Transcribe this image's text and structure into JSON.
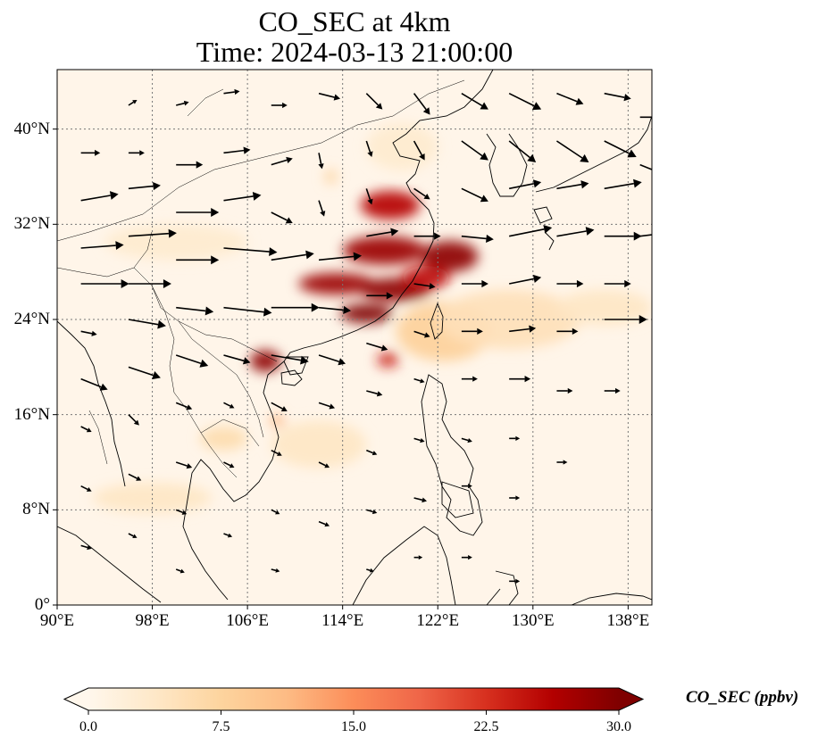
{
  "title": {
    "line1": "CO_SEC at 4km",
    "line2": "Time: 2024-03-13 21:00:00"
  },
  "map": {
    "lon_range": [
      90,
      140
    ],
    "lat_range": [
      0,
      45
    ],
    "lat_ticks": [
      {
        "value": 40,
        "label": "40°N"
      },
      {
        "value": 32,
        "label": "32°N"
      },
      {
        "value": 24,
        "label": "24°N"
      },
      {
        "value": 16,
        "label": "16°N"
      },
      {
        "value": 8,
        "label": "8°N"
      },
      {
        "value": 0,
        "label": "0°"
      }
    ],
    "lon_ticks": [
      {
        "value": 90,
        "label": "90°E"
      },
      {
        "value": 98,
        "label": "98°E"
      },
      {
        "value": 106,
        "label": "106°E"
      },
      {
        "value": 114,
        "label": "114°E"
      },
      {
        "value": 122,
        "label": "122°E"
      },
      {
        "value": 130,
        "label": "130°E"
      },
      {
        "value": 138,
        "label": "138°E"
      }
    ],
    "gridlines": true
  },
  "colorbar": {
    "title": "CO_SEC (ppbv)",
    "ticks": [
      "0.0",
      "7.5",
      "15.0",
      "22.5",
      "30.0"
    ],
    "tick_values": [
      0,
      7.5,
      15,
      22.5,
      30
    ],
    "range": [
      0,
      30
    ],
    "extend": "both",
    "colors": [
      "#fff7ec",
      "#fee8c8",
      "#fdd49e",
      "#fdbb84",
      "#fc8d59",
      "#ef6548",
      "#d7301f",
      "#b30000",
      "#7f0000"
    ]
  },
  "plumes": [
    {
      "lon": 118.0,
      "lat": 33.6,
      "rlon": 2.5,
      "rlat": 1.2,
      "value": 26
    },
    {
      "lon": 123.0,
      "lat": 29.3,
      "rlon": 2.4,
      "rlat": 1.3,
      "value": 29
    },
    {
      "lon": 117.5,
      "lat": 29.8,
      "rlon": 3.5,
      "rlat": 1.2,
      "value": 28
    },
    {
      "lon": 113.5,
      "lat": 27.0,
      "rlon": 3.2,
      "rlat": 0.9,
      "value": 28
    },
    {
      "lon": 118.5,
      "lat": 26.5,
      "rlon": 3.0,
      "rlat": 1.0,
      "value": 29
    },
    {
      "lon": 116.0,
      "lat": 24.5,
      "rlon": 2.2,
      "rlat": 0.8,
      "value": 30
    },
    {
      "lon": 121.0,
      "lat": 27.5,
      "rlon": 2.0,
      "rlat": 1.0,
      "value": 25
    },
    {
      "lon": 107.5,
      "lat": 20.5,
      "rlon": 1.3,
      "rlat": 0.9,
      "value": 29
    },
    {
      "lon": 117.8,
      "lat": 20.6,
      "rlon": 0.9,
      "rlat": 0.6,
      "value": 24
    },
    {
      "lon": 113.0,
      "lat": 36.0,
      "rlon": 0.5,
      "rlat": 0.6,
      "value": 8
    },
    {
      "lon": 122.5,
      "lat": 23.0,
      "rlon": 4.0,
      "rlat": 2.5,
      "value": 8
    },
    {
      "lon": 128.0,
      "lat": 24.0,
      "rlon": 6.0,
      "rlat": 2.5,
      "value": 5
    },
    {
      "lon": 108.5,
      "lat": 15.5,
      "rlon": 0.6,
      "rlat": 0.5,
      "value": 12
    },
    {
      "lon": 104.0,
      "lat": 14.0,
      "rlon": 2.0,
      "rlat": 1.0,
      "value": 6
    },
    {
      "lon": 98.0,
      "lat": 9.0,
      "rlon": 5.0,
      "rlat": 1.3,
      "value": 4
    },
    {
      "lon": 112.0,
      "lat": 13.5,
      "rlon": 4.0,
      "rlat": 2.0,
      "value": 4
    },
    {
      "lon": 100.0,
      "lat": 30.5,
      "rlon": 6.0,
      "rlat": 1.5,
      "value": 3
    },
    {
      "lon": 136.0,
      "lat": 25.0,
      "rlon": 4.0,
      "rlat": 1.5,
      "value": 4
    },
    {
      "lon": 119.0,
      "lat": 38.5,
      "rlon": 3.0,
      "rlat": 2.0,
      "value": 3
    }
  ],
  "winds": [
    {
      "lon": 92,
      "lat": 38,
      "u": 1.8,
      "v": 0
    },
    {
      "lon": 92,
      "lat": 34,
      "u": 3.5,
      "v": 0.6
    },
    {
      "lon": 92,
      "lat": 30,
      "u": 4.0,
      "v": 0.3
    },
    {
      "lon": 92,
      "lat": 27,
      "u": 4.5,
      "v": 0
    },
    {
      "lon": 92,
      "lat": 23,
      "u": 1.5,
      "v": -0.3
    },
    {
      "lon": 92,
      "lat": 19,
      "u": 2.5,
      "v": -1.0
    },
    {
      "lon": 92,
      "lat": 15,
      "u": 1.0,
      "v": -0.5
    },
    {
      "lon": 92,
      "lat": 10,
      "u": 1.0,
      "v": -0.5
    },
    {
      "lon": 92,
      "lat": 5,
      "u": 1.0,
      "v": -0.3
    },
    {
      "lon": 96,
      "lat": 42,
      "u": 0.8,
      "v": 0.5
    },
    {
      "lon": 96,
      "lat": 38,
      "u": 1.5,
      "v": 0
    },
    {
      "lon": 96,
      "lat": 35,
      "u": 3.0,
      "v": 0.3
    },
    {
      "lon": 96,
      "lat": 31,
      "u": 4.5,
      "v": 0.3
    },
    {
      "lon": 96,
      "lat": 27,
      "u": 4.0,
      "v": 0
    },
    {
      "lon": 96,
      "lat": 24,
      "u": 3.5,
      "v": -0.6
    },
    {
      "lon": 96,
      "lat": 20,
      "u": 3.0,
      "v": -1.0
    },
    {
      "lon": 96,
      "lat": 16,
      "u": 1.0,
      "v": -1.0
    },
    {
      "lon": 96,
      "lat": 11,
      "u": 1.2,
      "v": -0.6
    },
    {
      "lon": 96,
      "lat": 6,
      "u": 0.8,
      "v": -0.4
    },
    {
      "lon": 100,
      "lat": 42,
      "u": 1.2,
      "v": 0.3
    },
    {
      "lon": 100,
      "lat": 37,
      "u": 2.5,
      "v": 0
    },
    {
      "lon": 100,
      "lat": 33,
      "u": 4.0,
      "v": 0
    },
    {
      "lon": 100,
      "lat": 29,
      "u": 4.0,
      "v": 0
    },
    {
      "lon": 100,
      "lat": 25,
      "u": 3.5,
      "v": -0.4
    },
    {
      "lon": 100,
      "lat": 21,
      "u": 3.0,
      "v": -1.0
    },
    {
      "lon": 100,
      "lat": 17,
      "u": 1.5,
      "v": -0.6
    },
    {
      "lon": 100,
      "lat": 12,
      "u": 1.5,
      "v": -0.5
    },
    {
      "lon": 100,
      "lat": 8,
      "u": 1.0,
      "v": -0.4
    },
    {
      "lon": 100,
      "lat": 3,
      "u": 0.8,
      "v": -0.3
    },
    {
      "lon": 104,
      "lat": 43,
      "u": 1.5,
      "v": 0.2
    },
    {
      "lon": 104,
      "lat": 38,
      "u": 2.5,
      "v": 0.3
    },
    {
      "lon": 104,
      "lat": 34,
      "u": 3.5,
      "v": 0.5
    },
    {
      "lon": 104,
      "lat": 30,
      "u": 5.0,
      "v": -0.4
    },
    {
      "lon": 104,
      "lat": 25,
      "u": 4.5,
      "v": -0.5
    },
    {
      "lon": 104,
      "lat": 21,
      "u": 2.5,
      "v": -0.7
    },
    {
      "lon": 104,
      "lat": 17,
      "u": 1.0,
      "v": -0.5
    },
    {
      "lon": 104,
      "lat": 12,
      "u": 1.0,
      "v": -0.5
    },
    {
      "lon": 104,
      "lat": 6,
      "u": 0.8,
      "v": -0.3
    },
    {
      "lon": 108,
      "lat": 42,
      "u": 1.5,
      "v": 0
    },
    {
      "lon": 108,
      "lat": 37,
      "u": 2.0,
      "v": 0.6
    },
    {
      "lon": 108,
      "lat": 33,
      "u": 2.0,
      "v": -1.0
    },
    {
      "lon": 108,
      "lat": 29,
      "u": 4.0,
      "v": 0.6
    },
    {
      "lon": 108,
      "lat": 25,
      "u": 4.5,
      "v": 0
    },
    {
      "lon": 108,
      "lat": 21,
      "u": 3.5,
      "v": -0.6
    },
    {
      "lon": 108,
      "lat": 17,
      "u": 1.5,
      "v": -0.8
    },
    {
      "lon": 108,
      "lat": 13,
      "u": 1.0,
      "v": -0.5
    },
    {
      "lon": 108,
      "lat": 8,
      "u": 0.8,
      "v": -0.4
    },
    {
      "lon": 108,
      "lat": 3,
      "u": 0.8,
      "v": -0.2
    },
    {
      "lon": 112,
      "lat": 43,
      "u": 2.0,
      "v": -0.5
    },
    {
      "lon": 112,
      "lat": 38,
      "u": 0.3,
      "v": -1.5
    },
    {
      "lon": 112,
      "lat": 34,
      "u": 0.5,
      "v": -1.5
    },
    {
      "lon": 112,
      "lat": 29,
      "u": 4.0,
      "v": 0.4
    },
    {
      "lon": 112,
      "lat": 25,
      "u": 3.0,
      "v": -0.3
    },
    {
      "lon": 112,
      "lat": 21,
      "u": 2.5,
      "v": -0.8
    },
    {
      "lon": 112,
      "lat": 17,
      "u": 1.5,
      "v": -0.5
    },
    {
      "lon": 112,
      "lat": 12,
      "u": 1.0,
      "v": -0.5
    },
    {
      "lon": 112,
      "lat": 7,
      "u": 1.0,
      "v": -0.4
    },
    {
      "lon": 116,
      "lat": 43,
      "u": 1.5,
      "v": -1.5
    },
    {
      "lon": 116,
      "lat": 39,
      "u": 0.5,
      "v": -1.5
    },
    {
      "lon": 116,
      "lat": 35,
      "u": 0.5,
      "v": -1.5
    },
    {
      "lon": 116,
      "lat": 31,
      "u": 3.0,
      "v": 0.5
    },
    {
      "lon": 116,
      "lat": 26,
      "u": 2.5,
      "v": 0
    },
    {
      "lon": 116,
      "lat": 22,
      "u": 2.0,
      "v": -0.6
    },
    {
      "lon": 116,
      "lat": 18,
      "u": 1.5,
      "v": -0.4
    },
    {
      "lon": 116,
      "lat": 13,
      "u": 1.0,
      "v": -0.4
    },
    {
      "lon": 116,
      "lat": 8,
      "u": 1.0,
      "v": -0.3
    },
    {
      "lon": 116,
      "lat": 3,
      "u": 0.7,
      "v": -0.2
    },
    {
      "lon": 120,
      "lat": 43,
      "u": 1.5,
      "v": -2.0
    },
    {
      "lon": 120,
      "lat": 39,
      "u": 1.0,
      "v": -1.8
    },
    {
      "lon": 120,
      "lat": 35,
      "u": 1.5,
      "v": -1.0
    },
    {
      "lon": 120,
      "lat": 31,
      "u": 2.5,
      "v": 0
    },
    {
      "lon": 120,
      "lat": 27,
      "u": 2.0,
      "v": -0.3
    },
    {
      "lon": 120,
      "lat": 23,
      "u": 1.5,
      "v": -0.5
    },
    {
      "lon": 120,
      "lat": 19,
      "u": 1.0,
      "v": -0.3
    },
    {
      "lon": 120,
      "lat": 14,
      "u": 1.0,
      "v": -0.3
    },
    {
      "lon": 120,
      "lat": 9,
      "u": 1.2,
      "v": -0.3
    },
    {
      "lon": 120,
      "lat": 4,
      "u": 0.8,
      "v": 0
    },
    {
      "lon": 124,
      "lat": 43,
      "u": 2.5,
      "v": -1.5
    },
    {
      "lon": 124,
      "lat": 39,
      "u": 2.5,
      "v": -1.8
    },
    {
      "lon": 124,
      "lat": 35,
      "u": 2.5,
      "v": -1.2
    },
    {
      "lon": 124,
      "lat": 31,
      "u": 3.0,
      "v": -0.3
    },
    {
      "lon": 124,
      "lat": 27,
      "u": 2.5,
      "v": 0
    },
    {
      "lon": 124,
      "lat": 23,
      "u": 2.0,
      "v": 0
    },
    {
      "lon": 124,
      "lat": 19,
      "u": 1.5,
      "v": 0
    },
    {
      "lon": 124,
      "lat": 14,
      "u": 1.0,
      "v": -0.3
    },
    {
      "lon": 124,
      "lat": 10,
      "u": 1.0,
      "v": 0
    },
    {
      "lon": 124,
      "lat": 4,
      "u": 1.0,
      "v": 0
    },
    {
      "lon": 128,
      "lat": 43,
      "u": 3.0,
      "v": -1.5
    },
    {
      "lon": 128,
      "lat": 39,
      "u": 2.5,
      "v": -2.0
    },
    {
      "lon": 128,
      "lat": 35,
      "u": 3.0,
      "v": 0.6
    },
    {
      "lon": 128,
      "lat": 31,
      "u": 4.0,
      "v": 0.8
    },
    {
      "lon": 128,
      "lat": 27,
      "u": 3.0,
      "v": 0.6
    },
    {
      "lon": 128,
      "lat": 23,
      "u": 2.5,
      "v": 0.3
    },
    {
      "lon": 128,
      "lat": 19,
      "u": 2.0,
      "v": 0
    },
    {
      "lon": 128,
      "lat": 14,
      "u": 1.0,
      "v": 0
    },
    {
      "lon": 128,
      "lat": 9,
      "u": 1.0,
      "v": 0
    },
    {
      "lon": 128,
      "lat": 2,
      "u": 1.0,
      "v": 0
    },
    {
      "lon": 132,
      "lat": 43,
      "u": 2.5,
      "v": -1.0
    },
    {
      "lon": 132,
      "lat": 39,
      "u": 3.0,
      "v": -2.0
    },
    {
      "lon": 132,
      "lat": 35,
      "u": 3.0,
      "v": 0.5
    },
    {
      "lon": 132,
      "lat": 31,
      "u": 3.5,
      "v": 0.6
    },
    {
      "lon": 132,
      "lat": 27,
      "u": 2.5,
      "v": 0
    },
    {
      "lon": 132,
      "lat": 23,
      "u": 2.0,
      "v": 0
    },
    {
      "lon": 132,
      "lat": 18,
      "u": 1.5,
      "v": 0
    },
    {
      "lon": 132,
      "lat": 12,
      "u": 1.0,
      "v": 0
    },
    {
      "lon": 136,
      "lat": 43,
      "u": 2.5,
      "v": -0.5
    },
    {
      "lon": 136,
      "lat": 39,
      "u": 3.0,
      "v": -1.5
    },
    {
      "lon": 136,
      "lat": 35,
      "u": 3.5,
      "v": 0.6
    },
    {
      "lon": 136,
      "lat": 31,
      "u": 3.5,
      "v": 0
    },
    {
      "lon": 136,
      "lat": 27,
      "u": 2.5,
      "v": 0
    },
    {
      "lon": 136,
      "lat": 24,
      "u": 4.0,
      "v": 0
    },
    {
      "lon": 136,
      "lat": 18,
      "u": 1.5,
      "v": 0
    },
    {
      "lon": 139,
      "lat": 41,
      "u": 2.0,
      "v": 0
    },
    {
      "lon": 139,
      "lat": 37,
      "u": 2.5,
      "v": -1.0
    },
    {
      "lon": 139,
      "lat": 31,
      "u": 2.5,
      "v": 0.3
    }
  ]
}
